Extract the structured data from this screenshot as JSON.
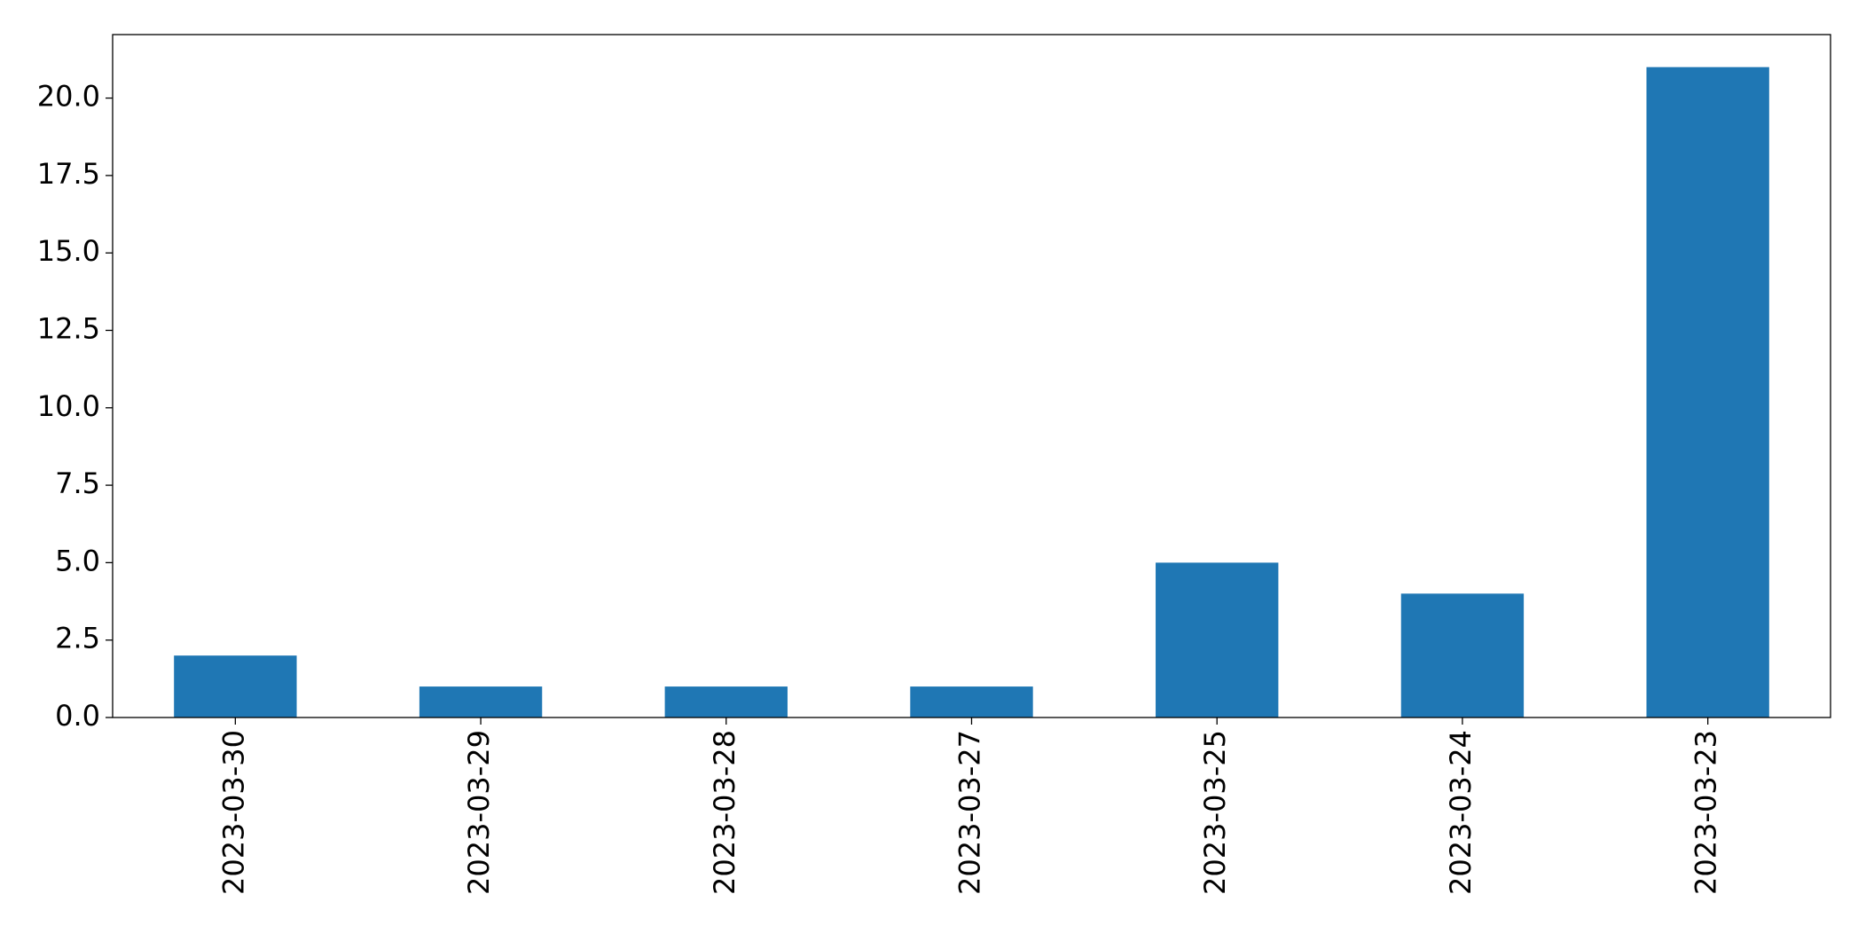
{
  "chart_data": {
    "type": "bar",
    "categories": [
      "2023-03-30",
      "2023-03-29",
      "2023-03-28",
      "2023-03-27",
      "2023-03-25",
      "2023-03-24",
      "2023-03-23"
    ],
    "values": [
      2,
      1,
      1,
      1,
      5,
      4,
      21
    ],
    "color": "#1f77b4",
    "ylim": [
      0,
      22.05
    ],
    "yticks": [
      {
        "value": 0,
        "label": "0.0"
      },
      {
        "value": 2.5,
        "label": "2.5"
      },
      {
        "value": 5,
        "label": "5.0"
      },
      {
        "value": 7.5,
        "label": "7.5"
      },
      {
        "value": 10,
        "label": "10.0"
      },
      {
        "value": 12.5,
        "label": "12.5"
      },
      {
        "value": 15,
        "label": "15.0"
      },
      {
        "value": 17.5,
        "label": "17.5"
      },
      {
        "value": 20,
        "label": "20.0"
      }
    ],
    "grid": false
  }
}
